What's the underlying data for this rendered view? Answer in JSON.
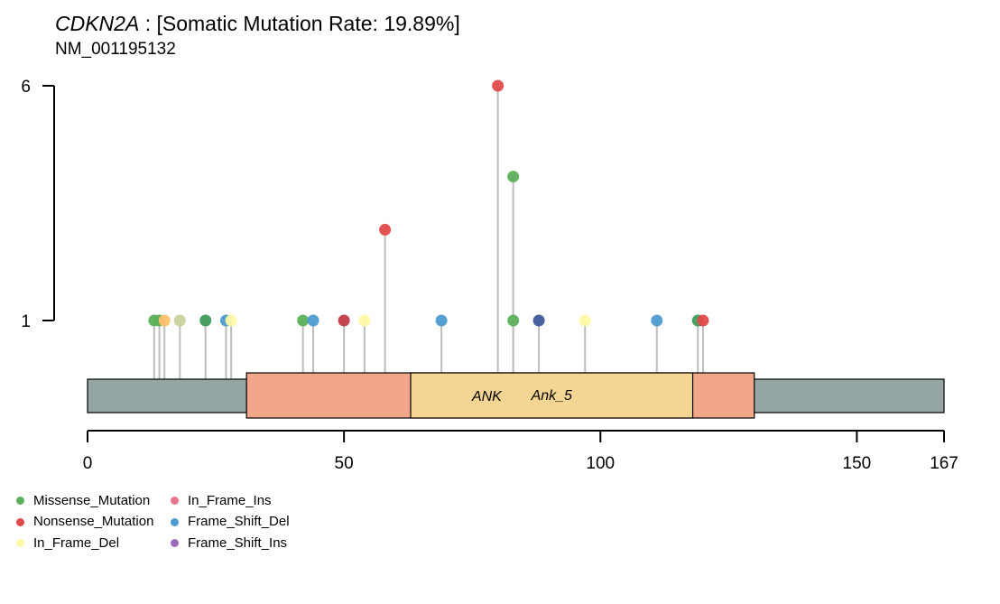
{
  "chart_data": {
    "type": "lollipop",
    "gene": "CDKN2A",
    "title_rest": " : [Somatic Mutation Rate: 19.89%]",
    "subtitle": "NM_001195132",
    "protein_length": 167,
    "x_ticks": [
      0,
      50,
      100,
      150,
      167
    ],
    "y_ticks": [
      1,
      6
    ],
    "domains": [
      {
        "name": "",
        "start": 31,
        "end": 130,
        "color": "#F2A78A"
      },
      {
        "name": "ANK",
        "label2": "Ank_5",
        "start": 63,
        "end": 118,
        "color": "#F5D593"
      }
    ],
    "mutations": [
      {
        "pos": 13,
        "count": 1,
        "type": "Missense_Mutation",
        "color": "#5DB05A"
      },
      {
        "pos": 14,
        "count": 1,
        "type": "Missense_Mutation",
        "color": "#5DB05A"
      },
      {
        "pos": 15,
        "count": 1,
        "type": "In_Frame_Del",
        "color": "#FCC16B"
      },
      {
        "pos": 18,
        "count": 1,
        "type": "In_Frame_Del",
        "color": "#C9D29A"
      },
      {
        "pos": 23,
        "count": 1,
        "type": "Missense_Mutation",
        "color": "#3E9C5A"
      },
      {
        "pos": 27,
        "count": 1,
        "type": "Frame_Shift_Del",
        "color": "#4D9CCF"
      },
      {
        "pos": 28,
        "count": 1,
        "type": "In_Frame_Del",
        "color": "#FEF9A6"
      },
      {
        "pos": 42,
        "count": 1,
        "type": "Missense_Mutation",
        "color": "#5DB05A"
      },
      {
        "pos": 44,
        "count": 1,
        "type": "Frame_Shift_Del",
        "color": "#4D9CCF"
      },
      {
        "pos": 50,
        "count": 1,
        "type": "Nonsense_Mutation",
        "color": "#C43A4A"
      },
      {
        "pos": 54,
        "count": 1,
        "type": "In_Frame_Del",
        "color": "#FEF9A6"
      },
      {
        "pos": 58,
        "count": 2,
        "type": "Nonsense_Mutation",
        "color": "#E24A4A"
      },
      {
        "pos": 69,
        "count": 1,
        "type": "Frame_Shift_Del",
        "color": "#4D9CCF"
      },
      {
        "pos": 80,
        "count": 6,
        "type": "Nonsense_Mutation",
        "color": "#E24A4A"
      },
      {
        "pos": 83,
        "count": 3,
        "type": "Missense_Mutation",
        "color": "#5DB05A"
      },
      {
        "pos": 83,
        "count": 1,
        "type": "Missense_Mutation",
        "color": "#5DB05A"
      },
      {
        "pos": 88,
        "count": 1,
        "type": "Frame_Shift_Del",
        "color": "#3E5A9A"
      },
      {
        "pos": 97,
        "count": 1,
        "type": "In_Frame_Del",
        "color": "#FEF9A6"
      },
      {
        "pos": 111,
        "count": 1,
        "type": "Frame_Shift_Del",
        "color": "#4D9CCF"
      },
      {
        "pos": 119,
        "count": 1,
        "type": "Missense_Mutation",
        "color": "#3E9C5A"
      },
      {
        "pos": 120,
        "count": 1,
        "type": "Nonsense_Mutation",
        "color": "#E24A4A"
      }
    ],
    "legend": [
      {
        "label": "Missense_Mutation",
        "color": "#5DB05A"
      },
      {
        "label": "Nonsense_Mutation",
        "color": "#E24A4A"
      },
      {
        "label": "In_Frame_Del",
        "color": "#FEF9A6"
      },
      {
        "label": "In_Frame_Ins",
        "color": "#E8768A"
      },
      {
        "label": "Frame_Shift_Del",
        "color": "#4D9CCF"
      },
      {
        "label": "Frame_Shift_Ins",
        "color": "#9A6CB8"
      }
    ],
    "protein_color": "#95A5A3",
    "stem_color": "#BDBDBD"
  }
}
